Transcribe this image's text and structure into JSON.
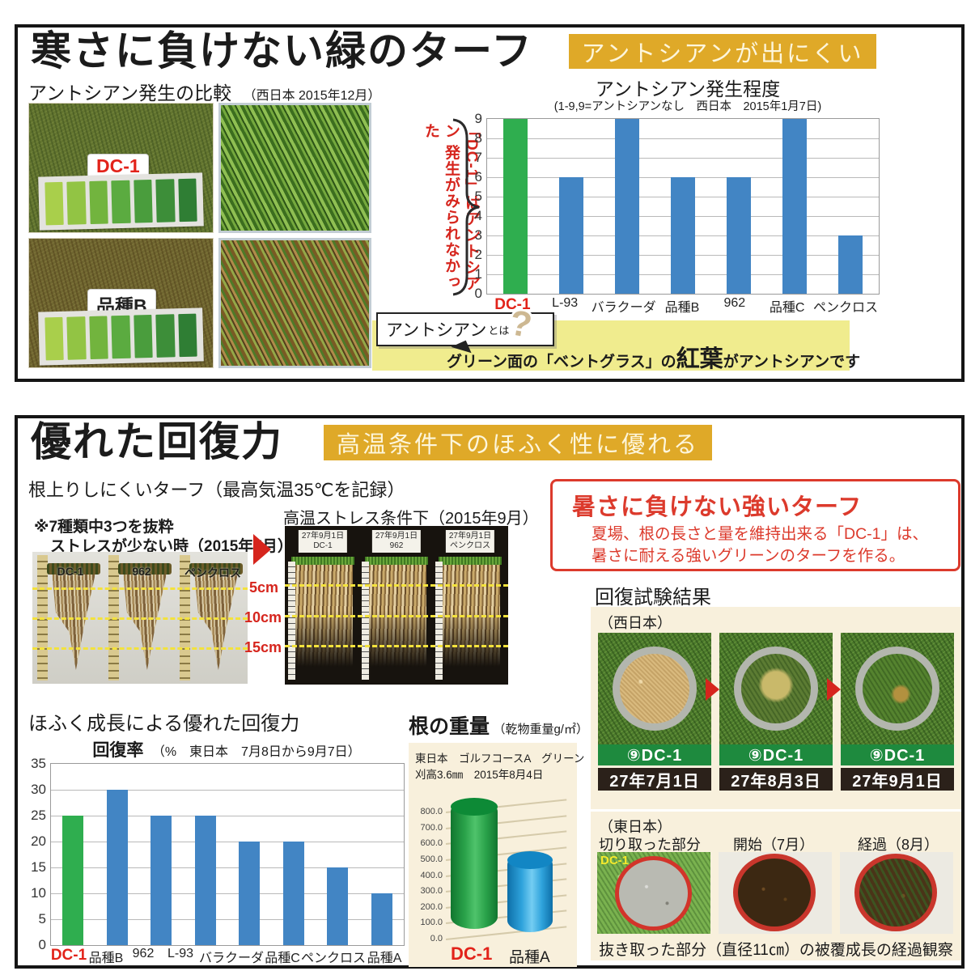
{
  "colors": {
    "accent_gold": "#dfa928",
    "pale_yellow": "#f0ec8e",
    "red": "#dc3a2c",
    "dc1_red": "#e2231a",
    "cream_panel": "#f8f0dc",
    "bar_blue": "#4285c4",
    "bar_green": "#2fae4f",
    "recovery_green": "#1e8a3e"
  },
  "section1": {
    "title": "寒さに負けない緑のターフ",
    "banner": "アントシアンが出にくい",
    "compare_label": "アントシアン発生の比較",
    "compare_date": "（西日本 2015年12月）",
    "photo_label_top": "DC-1",
    "photo_label_bottom": "品種B",
    "annotation_line1": "「DC-1」はアントシアン",
    "annotation_line2": "発生がみられなかった",
    "bubble_label": "アントシアン",
    "bubble_suffix": "とは",
    "bubble_qmark": "?",
    "note_pre": "グリーン面の「ベントグラス」の",
    "note_em": "紅葉",
    "note_post": "がアントシアンです"
  },
  "section2": {
    "title": "優れた回復力",
    "banner": "高温条件下のほふく性に優れる",
    "subtitle": "根上りしにくいターフ（最高気温35℃を記録）",
    "note1": "※7種類中3つを抜粋",
    "note2": "ストレスが少ない時（2015年7月）",
    "left_photo_labels": [
      "DC-1",
      "962",
      "ペンクロス"
    ],
    "depth_labels": [
      "5cm",
      "10cm",
      "15cm"
    ],
    "right_photo_title": "高温ストレス条件下（2015年9月）",
    "right_tag_date": "27年9月1日",
    "right_photo_labels": [
      "DC-1",
      "962",
      "ペンクロス"
    ],
    "heat_box": {
      "title": "暑さに負けない強いターフ",
      "line1": "夏場、根の長さと量を維持出来る「DC-1」は、",
      "line2": "暑さに耐える強いグリーンのターフを作る。"
    },
    "recovery": {
      "title": "回復試験結果",
      "region": "（西日本）",
      "items": [
        {
          "label": "⑨DC-1",
          "date": "27年7月1日"
        },
        {
          "label": "⑨DC-1",
          "date": "27年8月3日"
        },
        {
          "label": "⑨DC-1",
          "date": "27年9月1日"
        }
      ]
    },
    "hofuku_title": "ほふく成長による優れた回復力",
    "root_weight": {
      "title": "根の重量",
      "unit": "（乾物重量g/㎡）",
      "cond1": "東日本　ゴルフコースA　グリーン",
      "cond2": "刈高3.6㎜　2015年8月4日",
      "label_a": "DC-1",
      "label_b": "品種A"
    },
    "east_panel": {
      "region": "（東日本）",
      "label1": "切り取った部分",
      "label2": "開始（7月）",
      "label3": "経過（8月）",
      "photo_tag": "DC-1",
      "caption": "抜き取った部分（直径11㎝）の被覆成長の経過観察"
    }
  },
  "chart_data": [
    {
      "type": "bar",
      "title": "アントシアン発生程度",
      "subtitle": "(1-9,9=アントシアンなし　西日本　2015年1月7日)",
      "categories": [
        "DC-1",
        "L-93",
        "バラクーダ",
        "品種B",
        "962",
        "品種C",
        "ペンクロス"
      ],
      "values": [
        9,
        6,
        9,
        6,
        6,
        9,
        3
      ],
      "ylim": [
        0,
        9
      ],
      "ytick": 1,
      "grid": true,
      "legend": "none",
      "highlight_index": 0,
      "bar_color": "#4285c4",
      "highlight_color": "#2fae4f",
      "xlabel": "",
      "ylabel": ""
    },
    {
      "type": "bar",
      "title": "回復率",
      "subtitle": "（%　東日本　7月8日から9月7日）",
      "categories": [
        "DC-1",
        "品種B",
        "962",
        "L-93",
        "バラクーダ",
        "品種C",
        "ペンクロス",
        "品種A"
      ],
      "values": [
        25,
        30,
        25,
        25,
        20,
        20,
        15,
        10
      ],
      "ylim": [
        0,
        35
      ],
      "ytick": 5,
      "grid": true,
      "legend": "none",
      "highlight_index": 0,
      "bar_color": "#4285c4",
      "highlight_color": "#2fae4f",
      "xlabel": "",
      "ylabel": ""
    },
    {
      "type": "bar",
      "subtype": "3d-cylinder",
      "title": "根の重量",
      "categories": [
        "DC-1",
        "品種A"
      ],
      "values": [
        800,
        520
      ],
      "ylim": [
        0,
        800
      ],
      "ytick": 100,
      "grid": true,
      "highlight_index": 0,
      "bar_color": "#2fa3dc",
      "highlight_color": "#2aa24a",
      "xlabel": "",
      "ylabel": "乾物重量g/㎡"
    }
  ]
}
